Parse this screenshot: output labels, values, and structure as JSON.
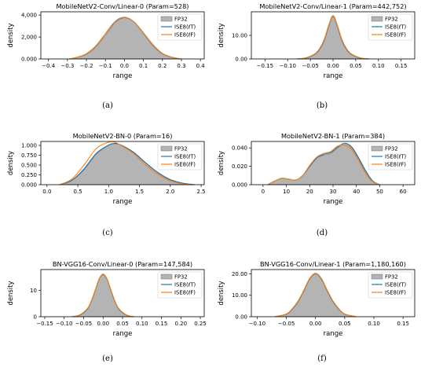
{
  "figure": {
    "legend": {
      "entries": [
        "ISE8(ℓT)",
        "ISE8(ℓF)",
        "FP32"
      ],
      "colors": [
        "#1f77b4",
        "#ff7f0e",
        "#b4b4b4"
      ],
      "placement": "top-right"
    },
    "fill_color": "#b4b4b4",
    "fill_edge_color": "#707070"
  },
  "chart_data": [
    {
      "type": "area",
      "caption": "(a)",
      "title": "MobileNetV2-Conv/Linear-0 (Param=528)",
      "xlabel": "range",
      "ylabel": "density",
      "xlim": [
        -0.44,
        0.42
      ],
      "ylim": [
        0,
        4300
      ],
      "xticks": [
        -0.4,
        -0.3,
        -0.2,
        -0.1,
        0.0,
        0.1,
        0.2,
        0.3,
        0.4
      ],
      "xtick_labels": [
        "−0.4",
        "−0.3",
        "−0.2",
        "−0.1",
        "0.0",
        "0.1",
        "0.2",
        "0.3",
        "0.4"
      ],
      "yticks": [
        0,
        2000,
        4000
      ],
      "ytick_labels": [
        "0.000",
        "2,000",
        "4,000"
      ],
      "series": [
        {
          "name": "FP32",
          "x": [
            -0.29,
            -0.25,
            -0.2,
            -0.15,
            -0.1,
            -0.05,
            0,
            0.05,
            0.1,
            0.15,
            0.2,
            0.25,
            0.3
          ],
          "y": [
            0,
            120,
            420,
            1100,
            2150,
            3300,
            3750,
            3350,
            2300,
            1200,
            450,
            130,
            0
          ]
        },
        {
          "name": "ISE8(ℓT)",
          "x": [
            -0.29,
            -0.25,
            -0.2,
            -0.15,
            -0.1,
            -0.05,
            0,
            0.05,
            0.1,
            0.15,
            0.2,
            0.25,
            0.3
          ],
          "y": [
            0,
            150,
            480,
            1200,
            2300,
            3400,
            3800,
            3380,
            2380,
            1300,
            500,
            160,
            0
          ]
        },
        {
          "name": "ISE8(ℓF)",
          "x": [
            -0.29,
            -0.25,
            -0.2,
            -0.15,
            -0.1,
            -0.05,
            0,
            0.05,
            0.1,
            0.15,
            0.2,
            0.25,
            0.3
          ],
          "y": [
            0,
            140,
            470,
            1180,
            2280,
            3380,
            3790,
            3370,
            2360,
            1280,
            490,
            150,
            0
          ]
        }
      ]
    },
    {
      "type": "area",
      "caption": "(b)",
      "title": "MobileNetV2-Conv/Linear-1 (Param=442,752)",
      "xlabel": "range",
      "ylabel": "density",
      "xlim": [
        -0.18,
        0.18
      ],
      "ylim": [
        0,
        20
      ],
      "xticks": [
        -0.15,
        -0.1,
        -0.05,
        0.0,
        0.05,
        0.1,
        0.15
      ],
      "xtick_labels": [
        "−0.15",
        "−0.10",
        "−0.05",
        "0.00",
        "0.05",
        "0.10",
        "0.15"
      ],
      "yticks": [
        0,
        10
      ],
      "ytick_labels": [
        "0.00",
        "10.00"
      ],
      "series": [
        {
          "name": "FP32",
          "x": [
            -0.08,
            -0.06,
            -0.04,
            -0.03,
            -0.02,
            -0.01,
            0,
            0.01,
            0.02,
            0.03,
            0.04,
            0.06,
            0.08
          ],
          "y": [
            0,
            0.4,
            2.0,
            4.0,
            7.5,
            13.5,
            18.0,
            13.5,
            7.5,
            4.0,
            2.0,
            0.4,
            0
          ]
        },
        {
          "name": "ISE8(ℓT)",
          "x": [
            -0.08,
            -0.06,
            -0.04,
            -0.03,
            -0.02,
            -0.01,
            0,
            0.01,
            0.02,
            0.03,
            0.04,
            0.06,
            0.08
          ],
          "y": [
            0,
            0.4,
            2.0,
            4.0,
            7.6,
            13.6,
            18.2,
            13.6,
            7.6,
            4.0,
            2.0,
            0.4,
            0
          ]
        },
        {
          "name": "ISE8(ℓF)",
          "x": [
            -0.08,
            -0.06,
            -0.04,
            -0.03,
            -0.02,
            -0.01,
            0,
            0.01,
            0.02,
            0.03,
            0.04,
            0.06,
            0.08
          ],
          "y": [
            0,
            0.5,
            2.2,
            4.3,
            8.0,
            14.0,
            18.4,
            14.0,
            8.0,
            4.3,
            2.2,
            0.5,
            0
          ]
        }
      ]
    },
    {
      "type": "area",
      "caption": "(c)",
      "title": "MobileNetV2-BN-0 (Param=16)",
      "xlabel": "range",
      "ylabel": "density",
      "xlim": [
        -0.1,
        2.55
      ],
      "ylim": [
        0,
        1.1
      ],
      "xticks": [
        0.0,
        0.5,
        1.0,
        1.5,
        2.0,
        2.5
      ],
      "xtick_labels": [
        "0.0",
        "0.5",
        "1.0",
        "1.5",
        "2.0",
        "2.5"
      ],
      "yticks": [
        0,
        0.25,
        0.5,
        0.75,
        1.0
      ],
      "ytick_labels": [
        "0.000",
        "0.250",
        "0.500",
        "0.750",
        "1.000"
      ],
      "series": [
        {
          "name": "FP32",
          "x": [
            0.2,
            0.4,
            0.6,
            0.8,
            1.0,
            1.1,
            1.2,
            1.4,
            1.6,
            1.8,
            2.0,
            2.2,
            2.4
          ],
          "y": [
            0,
            0.1,
            0.38,
            0.78,
            1.0,
            1.04,
            1.0,
            0.82,
            0.55,
            0.3,
            0.12,
            0.03,
            0
          ]
        },
        {
          "name": "ISE8(ℓT)",
          "x": [
            0.2,
            0.4,
            0.6,
            0.8,
            1.0,
            1.1,
            1.2,
            1.4,
            1.6,
            1.8,
            2.0,
            2.2,
            2.4
          ],
          "y": [
            0,
            0.11,
            0.4,
            0.8,
            1.01,
            1.05,
            1.01,
            0.83,
            0.56,
            0.31,
            0.13,
            0.04,
            0
          ]
        },
        {
          "name": "ISE8(ℓF)",
          "x": [
            0.2,
            0.4,
            0.6,
            0.8,
            1.0,
            1.1,
            1.2,
            1.4,
            1.6,
            1.8,
            2.0,
            2.2,
            2.4
          ],
          "y": [
            0,
            0.14,
            0.5,
            0.92,
            1.08,
            1.08,
            1.0,
            0.8,
            0.5,
            0.26,
            0.1,
            0.02,
            0
          ]
        }
      ]
    },
    {
      "type": "area",
      "caption": "(d)",
      "title": "MobileNetV2-BN-1 (Param=384)",
      "xlabel": "range",
      "ylabel": "density",
      "xlim": [
        -5,
        65
      ],
      "ylim": [
        0,
        0.047
      ],
      "xticks": [
        0,
        10,
        20,
        30,
        40,
        50,
        60
      ],
      "xtick_labels": [
        "0",
        "10",
        "20",
        "30",
        "40",
        "50",
        "60"
      ],
      "yticks": [
        0,
        0.02,
        0.04
      ],
      "ytick_labels": [
        "0.000",
        "0.020",
        "0.040"
      ],
      "series": [
        {
          "name": "FP32",
          "x": [
            2,
            5,
            8,
            11,
            14,
            17,
            20,
            23,
            26,
            29,
            32,
            35,
            38,
            41,
            44,
            47,
            50
          ],
          "y": [
            0,
            0.004,
            0.007,
            0.006,
            0.005,
            0.01,
            0.02,
            0.029,
            0.032,
            0.034,
            0.04,
            0.044,
            0.04,
            0.028,
            0.014,
            0.004,
            0
          ]
        },
        {
          "name": "ISE8(ℓT)",
          "x": [
            2,
            5,
            8,
            11,
            14,
            17,
            20,
            23,
            26,
            29,
            32,
            35,
            38,
            41,
            44,
            47,
            50
          ],
          "y": [
            0,
            0.004,
            0.007,
            0.006,
            0.005,
            0.01,
            0.02,
            0.029,
            0.033,
            0.035,
            0.041,
            0.045,
            0.041,
            0.029,
            0.015,
            0.004,
            0
          ]
        },
        {
          "name": "ISE8(ℓF)",
          "x": [
            2,
            5,
            8,
            11,
            14,
            17,
            20,
            23,
            26,
            29,
            32,
            35,
            38,
            41,
            44,
            47,
            50
          ],
          "y": [
            0,
            0.004,
            0.007,
            0.006,
            0.005,
            0.01,
            0.021,
            0.03,
            0.034,
            0.036,
            0.042,
            0.043,
            0.038,
            0.026,
            0.012,
            0.003,
            0
          ]
        }
      ]
    },
    {
      "type": "area",
      "caption": "(e)",
      "title": "BN-VGG16-Conv/Linear-0 (Param=147,584)",
      "xlabel": "range",
      "ylabel": "density",
      "xlim": [
        -0.16,
        0.26
      ],
      "ylim": [
        0,
        18
      ],
      "xticks": [
        -0.15,
        -0.1,
        -0.05,
        0.0,
        0.05,
        0.1,
        0.15,
        0.2,
        0.25
      ],
      "xtick_labels": [
        "−0.15",
        "−0.10",
        "−0.05",
        "0.00",
        "0.05",
        "0.10",
        "0.15",
        "0.20",
        "0.25"
      ],
      "yticks": [
        0,
        10
      ],
      "ytick_labels": [
        "0",
        "10"
      ],
      "series": [
        {
          "name": "FP32",
          "x": [
            -0.08,
            -0.06,
            -0.04,
            -0.03,
            -0.02,
            -0.01,
            0,
            0.01,
            0.02,
            0.03,
            0.04,
            0.06,
            0.08
          ],
          "y": [
            0,
            0.6,
            3.0,
            6.0,
            10.0,
            14.2,
            16.0,
            14.2,
            10.0,
            6.0,
            3.0,
            0.6,
            0
          ]
        },
        {
          "name": "ISE8(ℓT)",
          "x": [
            -0.08,
            -0.06,
            -0.04,
            -0.03,
            -0.02,
            -0.01,
            0,
            0.01,
            0.02,
            0.03,
            0.04,
            0.06,
            0.08
          ],
          "y": [
            0,
            0.6,
            3.0,
            6.0,
            10.1,
            14.4,
            16.2,
            14.4,
            10.1,
            6.0,
            3.0,
            0.6,
            0
          ]
        },
        {
          "name": "ISE8(ℓF)",
          "x": [
            -0.08,
            -0.06,
            -0.04,
            -0.03,
            -0.02,
            -0.01,
            0,
            0.01,
            0.02,
            0.03,
            0.04,
            0.06,
            0.08
          ],
          "y": [
            0,
            0.7,
            3.2,
            6.2,
            10.3,
            14.5,
            16.3,
            14.5,
            10.3,
            6.2,
            3.2,
            0.7,
            0
          ]
        }
      ]
    },
    {
      "type": "area",
      "caption": "(f)",
      "title": "BN-VGG16-Conv/Linear-1 (Param=1,180,160)",
      "xlabel": "range",
      "ylabel": "density",
      "xlim": [
        -0.11,
        0.17
      ],
      "ylim": [
        0,
        22
      ],
      "xticks": [
        -0.1,
        -0.05,
        0.0,
        0.05,
        0.1,
        0.15
      ],
      "xtick_labels": [
        "−0.10",
        "−0.05",
        "0.00",
        "0.05",
        "0.10",
        "0.15"
      ],
      "yticks": [
        0,
        10,
        20
      ],
      "ytick_labels": [
        "0.00",
        "10.00",
        "20.00"
      ],
      "series": [
        {
          "name": "FP32",
          "x": [
            -0.07,
            -0.05,
            -0.04,
            -0.03,
            -0.02,
            -0.01,
            0,
            0.01,
            0.02,
            0.03,
            0.04,
            0.05,
            0.07
          ],
          "y": [
            0,
            1.2,
            3.5,
            7.0,
            12.0,
            17.5,
            20.0,
            17.5,
            12.0,
            7.0,
            3.5,
            1.2,
            0
          ]
        },
        {
          "name": "ISE8(ℓT)",
          "x": [
            -0.07,
            -0.05,
            -0.04,
            -0.03,
            -0.02,
            -0.01,
            0,
            0.01,
            0.02,
            0.03,
            0.04,
            0.05,
            0.07
          ],
          "y": [
            0,
            1.2,
            3.5,
            7.0,
            12.1,
            17.7,
            20.2,
            17.7,
            12.1,
            7.0,
            3.5,
            1.2,
            0
          ]
        },
        {
          "name": "ISE8(ℓF)",
          "x": [
            -0.07,
            -0.05,
            -0.04,
            -0.03,
            -0.02,
            -0.01,
            0,
            0.01,
            0.02,
            0.03,
            0.04,
            0.05,
            0.07
          ],
          "y": [
            0,
            1.3,
            3.7,
            7.3,
            12.4,
            17.9,
            20.3,
            17.9,
            12.4,
            7.3,
            3.7,
            1.3,
            0
          ]
        }
      ]
    }
  ]
}
